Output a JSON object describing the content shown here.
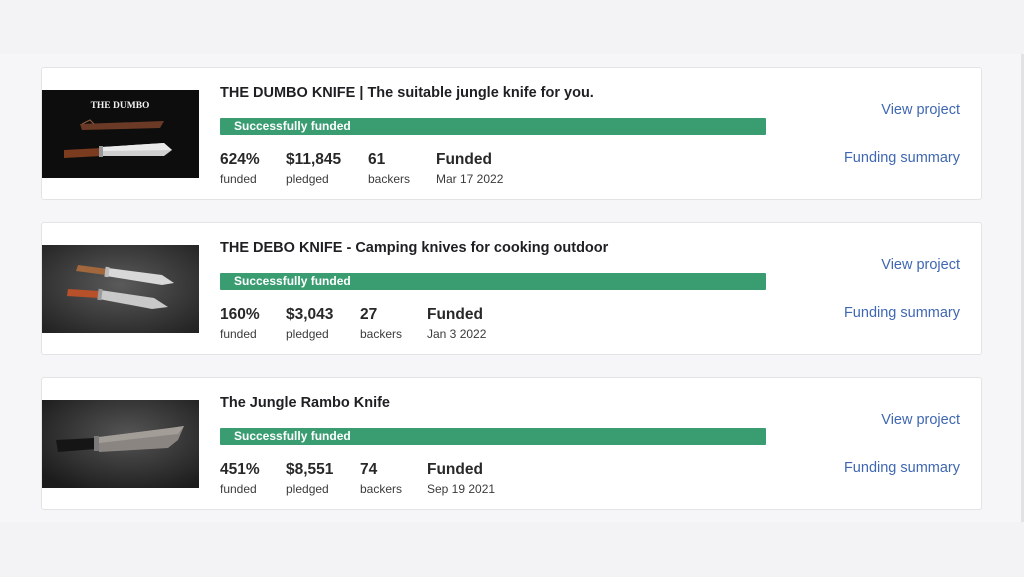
{
  "projects": [
    {
      "title": "THE DUMBO KNIFE | The suitable jungle knife for you.",
      "image_text": "THE DUMBO",
      "status": "Successfully funded",
      "percent": "624%",
      "percent_label": "funded",
      "pledged": "$11,845",
      "pledged_label": "pledged",
      "backers": "61",
      "backers_label": "backers",
      "state": "Funded",
      "date": "Mar 17 2022",
      "view_label": "View project",
      "summary_label": "Funding summary"
    },
    {
      "title": "THE DEBO KNIFE - Camping knives for cooking outdoor",
      "status": "Successfully funded",
      "percent": "160%",
      "percent_label": "funded",
      "pledged": "$3,043",
      "pledged_label": "pledged",
      "backers": "27",
      "backers_label": "backers",
      "state": "Funded",
      "date": "Jan 3 2022",
      "view_label": "View project",
      "summary_label": "Funding summary"
    },
    {
      "title": "The Jungle Rambo Knife",
      "status": "Successfully funded",
      "percent": "451%",
      "percent_label": "funded",
      "pledged": "$8,551",
      "pledged_label": "pledged",
      "backers": "74",
      "backers_label": "backers",
      "state": "Funded",
      "date": "Sep 19 2021",
      "view_label": "View project",
      "summary_label": "Funding summary"
    }
  ],
  "colors": {
    "progress_bar": "#3a9d72",
    "link": "#3f67b2",
    "title": "#1f1f23",
    "background": "#f6f6f8"
  }
}
